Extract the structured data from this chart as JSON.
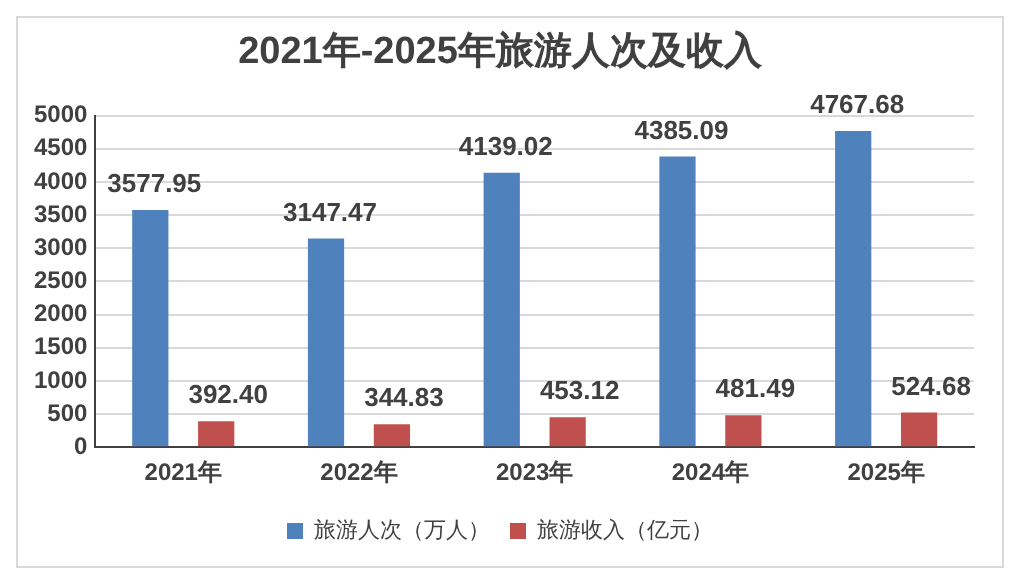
{
  "chart_data": {
    "type": "bar",
    "title": "2021年-2025年旅游人次及收入",
    "categories": [
      "2021年",
      "2022年",
      "2023年",
      "2024年",
      "2025年"
    ],
    "series": [
      {
        "name": "旅游人次（万人）",
        "color": "#4f81bd",
        "values": [
          3577.95,
          3147.47,
          4139.02,
          4385.09,
          4767.68
        ],
        "value_labels": [
          "3577.95",
          "3147.47",
          "4139.02",
          "4385.09",
          "4767.68"
        ]
      },
      {
        "name": "旅游收入（亿元）",
        "color": "#c0504d",
        "values": [
          392.4,
          344.83,
          453.12,
          481.49,
          524.68
        ],
        "value_labels": [
          "392.40",
          "344.83",
          "453.12",
          "481.49",
          "524.68"
        ]
      }
    ],
    "ylim": [
      0,
      5000
    ],
    "yticks": [
      0,
      500,
      1000,
      1500,
      2000,
      2500,
      3000,
      3500,
      4000,
      4500,
      5000
    ],
    "grid": "y",
    "legend": "bottom"
  }
}
